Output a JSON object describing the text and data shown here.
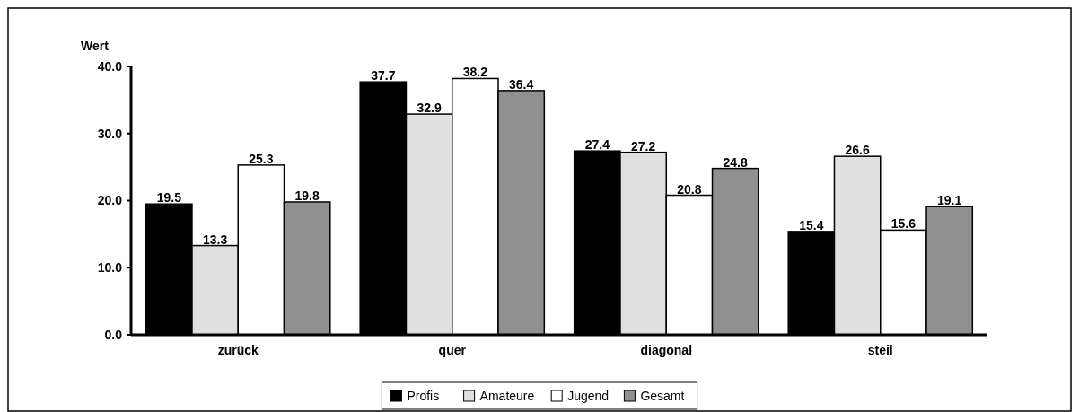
{
  "chart_data": {
    "type": "bar",
    "ylabel": "Wert",
    "categories": [
      "zurück",
      "quer",
      "diagonal",
      "steil"
    ],
    "series": [
      {
        "name": "Profis",
        "color": "#000000",
        "values": [
          19.5,
          37.7,
          27.4,
          15.4
        ]
      },
      {
        "name": "Amateure",
        "color": "#e0e0e0",
        "values": [
          13.3,
          32.9,
          27.2,
          26.6
        ]
      },
      {
        "name": "Jugend",
        "color": "#ffffff",
        "values": [
          25.3,
          38.2,
          20.8,
          15.6
        ]
      },
      {
        "name": "Gesamt",
        "color": "#909090",
        "values": [
          19.8,
          36.4,
          24.8,
          19.1
        ]
      }
    ],
    "ylim": [
      0,
      40
    ],
    "yticks": [
      {
        "value": 0,
        "label": "0.0"
      },
      {
        "value": 10,
        "label": "10.0"
      },
      {
        "value": 20,
        "label": "20.0"
      },
      {
        "value": 30,
        "label": "30.0"
      },
      {
        "value": 40,
        "label": "40.0"
      }
    ],
    "grid": false,
    "legend": "bottom",
    "data_labels": true
  }
}
